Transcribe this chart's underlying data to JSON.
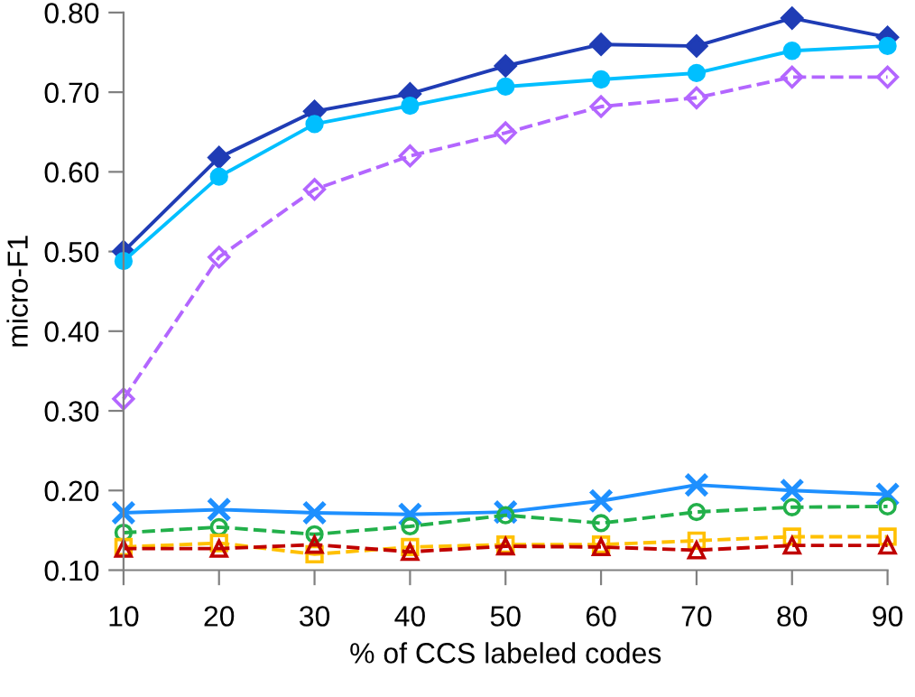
{
  "chart_data": {
    "type": "line",
    "xlabel": "% of CCS labeled codes",
    "ylabel": "micro-F1",
    "x": [
      10,
      20,
      30,
      40,
      50,
      60,
      70,
      80,
      90
    ],
    "series": [
      {
        "color": "#1f3cb5",
        "marker": "diamond",
        "line_style": "solid",
        "values": [
          0.5,
          0.618,
          0.676,
          0.698,
          0.733,
          0.76,
          0.758,
          0.793,
          0.769
        ]
      },
      {
        "color": "#00bfff",
        "marker": "circle",
        "line_style": "solid",
        "values": [
          0.488,
          0.594,
          0.66,
          0.683,
          0.707,
          0.716,
          0.724,
          0.752,
          0.758
        ]
      },
      {
        "color": "#b366ff",
        "marker": "diamond",
        "line_style": "dashed",
        "values": [
          0.315,
          0.493,
          0.578,
          0.62,
          0.649,
          0.682,
          0.693,
          0.719,
          0.719
        ]
      },
      {
        "color": "#1e90ff",
        "marker": "cross",
        "line_style": "solid",
        "values": [
          0.172,
          0.176,
          0.172,
          0.17,
          0.173,
          0.187,
          0.207,
          0.2,
          0.195
        ]
      },
      {
        "color": "#22b04a",
        "marker": "circle",
        "line_style": "dashed",
        "values": [
          0.147,
          0.154,
          0.145,
          0.155,
          0.169,
          0.159,
          0.173,
          0.179,
          0.18
        ]
      },
      {
        "color": "#ffc000",
        "marker": "square",
        "line_style": "dashed",
        "values": [
          0.129,
          0.134,
          0.12,
          0.129,
          0.132,
          0.132,
          0.137,
          0.142,
          0.142
        ]
      },
      {
        "color": "#c00000",
        "marker": "triangle",
        "line_style": "dashed",
        "values": [
          0.127,
          0.127,
          0.132,
          0.123,
          0.13,
          0.129,
          0.125,
          0.131,
          0.131
        ]
      }
    ],
    "xlim": [
      10,
      90
    ],
    "xticks": [
      10,
      20,
      30,
      40,
      50,
      60,
      70,
      80,
      90
    ],
    "ylim": [
      0.1,
      0.8
    ],
    "yticks": [
      {
        "value": 0.1,
        "label": "0.10"
      },
      {
        "value": 0.2,
        "label": "0.20"
      },
      {
        "value": 0.3,
        "label": "0.30"
      },
      {
        "value": 0.4,
        "label": "0.40"
      },
      {
        "value": 0.5,
        "label": "0.50"
      },
      {
        "value": 0.6,
        "label": "0.60"
      },
      {
        "value": 0.7,
        "label": "0.70"
      },
      {
        "value": 0.8,
        "label": "0.80"
      }
    ],
    "grid": false,
    "legend": false
  }
}
